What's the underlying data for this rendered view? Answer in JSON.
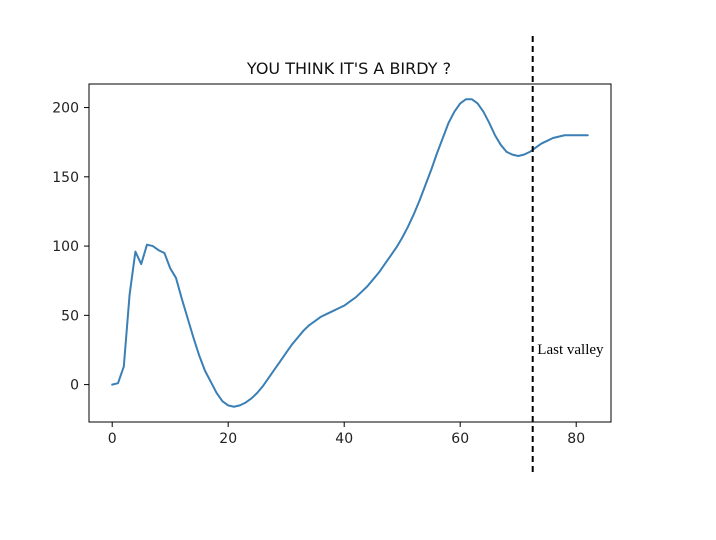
{
  "chart_data": {
    "type": "line",
    "title": "YOU THINK IT'S A BIRDY ?",
    "xlabel": "",
    "ylabel": "",
    "xlim": [
      -4,
      86
    ],
    "ylim": [
      -27,
      217
    ],
    "x_ticks": [
      0,
      20,
      40,
      60,
      80
    ],
    "y_ticks": [
      0,
      50,
      100,
      150,
      200
    ],
    "grid": false,
    "series": [
      {
        "color": "#3a7fb5",
        "x": [
          0,
          1,
          2,
          3,
          4,
          5,
          6,
          7,
          8,
          9,
          10,
          11,
          12,
          13,
          14,
          15,
          16,
          17,
          18,
          19,
          20,
          21,
          22,
          23,
          24,
          25,
          26,
          27,
          28,
          29,
          30,
          31,
          32,
          33,
          34,
          35,
          36,
          37,
          38,
          39,
          40,
          41,
          42,
          43,
          44,
          45,
          46,
          47,
          48,
          49,
          50,
          51,
          52,
          53,
          54,
          55,
          56,
          57,
          58,
          59,
          60,
          61,
          62,
          63,
          64,
          65,
          66,
          67,
          68,
          69,
          70,
          71,
          72,
          73,
          74,
          75,
          76,
          77,
          78,
          79,
          80,
          81,
          82
        ],
        "y": [
          0,
          1,
          13,
          65,
          96,
          87,
          101,
          100,
          97,
          95,
          84,
          77,
          62,
          48,
          34,
          21,
          10,
          2,
          -6,
          -12,
          -15,
          -16,
          -15,
          -13,
          -10,
          -6,
          -1,
          5,
          11,
          17,
          23,
          29,
          34,
          39,
          43,
          46,
          49,
          51,
          53,
          55,
          57,
          60,
          63,
          67,
          71,
          76,
          81,
          87,
          93,
          99,
          106,
          114,
          123,
          133,
          144,
          155,
          167,
          178,
          189,
          197,
          203,
          206,
          206,
          203,
          197,
          189,
          180,
          173,
          168,
          166,
          165,
          166,
          168,
          171,
          174,
          176,
          178,
          179,
          180,
          180,
          180,
          180,
          180
        ]
      }
    ],
    "vline": {
      "x": 72.5,
      "style": "dashed",
      "color": "#000000"
    },
    "annotation": {
      "text": "Last valley",
      "x": 73.3,
      "y": 22
    }
  }
}
